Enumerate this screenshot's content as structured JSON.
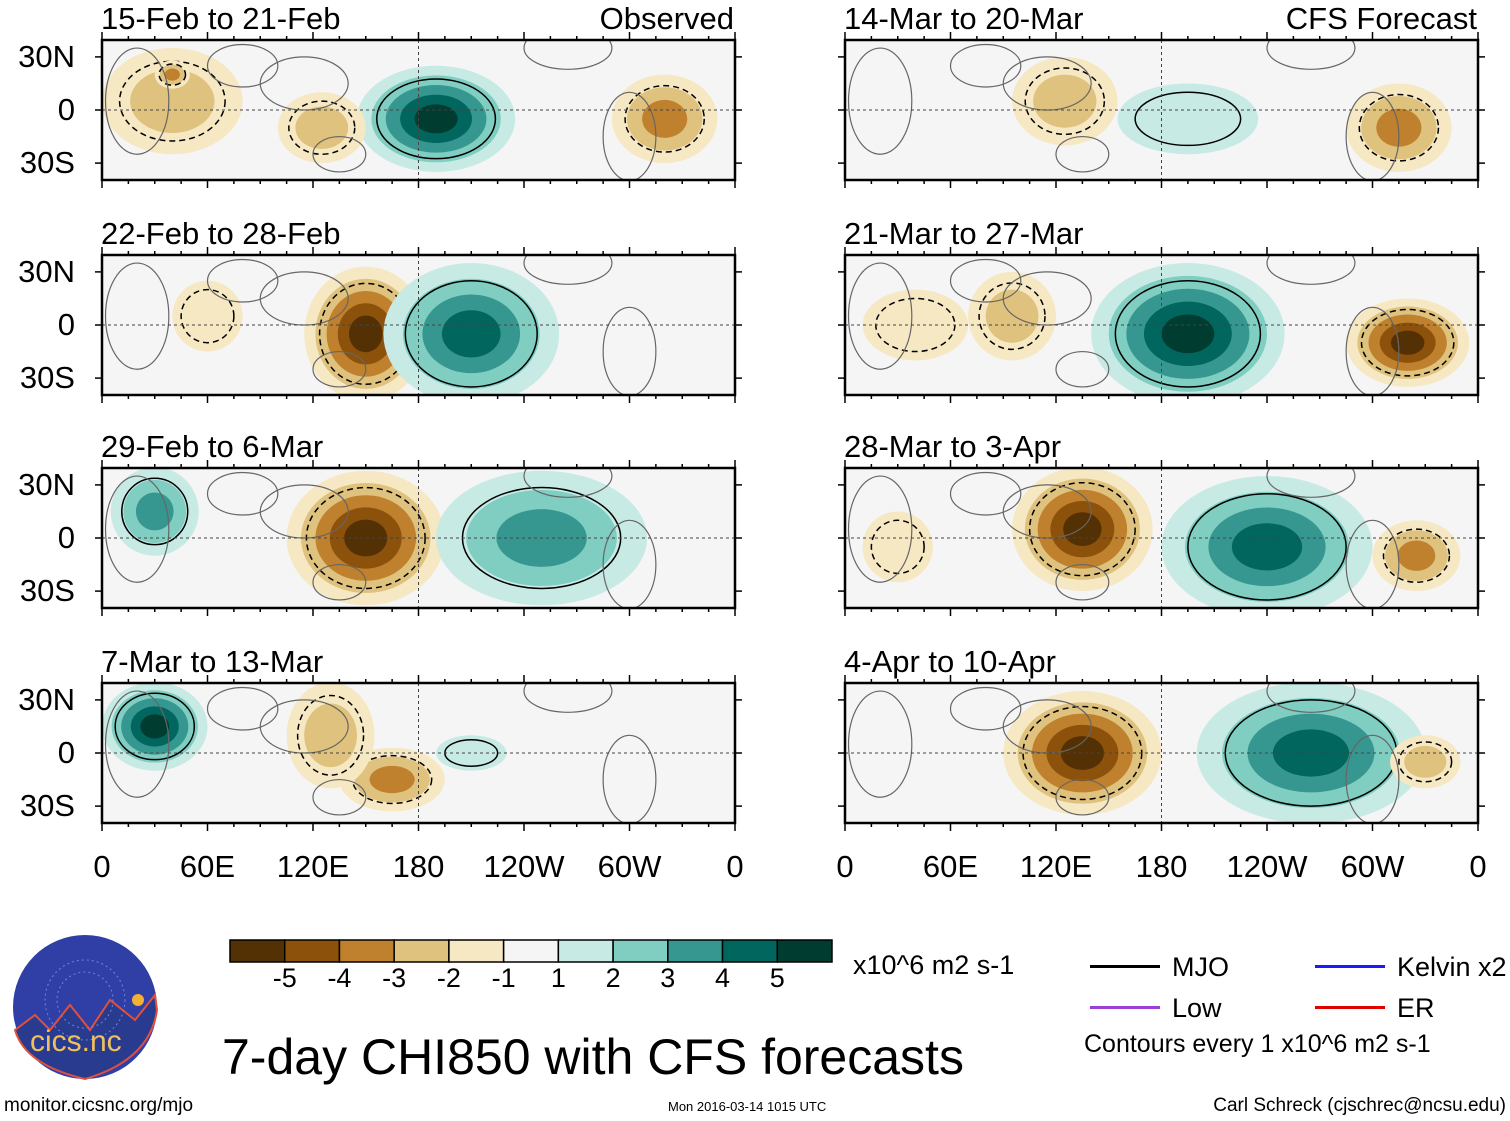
{
  "panels": [
    {
      "title": "15-Feb to 21-Feb",
      "tag": "Observed"
    },
    {
      "title": "22-Feb to 28-Feb"
    },
    {
      "title": "29-Feb to 6-Mar"
    },
    {
      "title": "7-Mar to 13-Mar"
    },
    {
      "title": "14-Mar to 20-Mar",
      "tag": "CFS Forecast"
    },
    {
      "title": "21-Mar to 27-Mar"
    },
    {
      "title": "28-Mar to 3-Apr"
    },
    {
      "title": "4-Apr to 10-Apr"
    }
  ],
  "lat_labels": [
    "30N",
    "0",
    "30S"
  ],
  "lon_labels": [
    "0",
    "60E",
    "120E",
    "180",
    "120W",
    "60W",
    "0"
  ],
  "colorbar": {
    "colors": [
      "#543005",
      "#8c510a",
      "#bf812d",
      "#dfc27d",
      "#f6e8c3",
      "#f5f5f5",
      "#c7eae5",
      "#80cdc1",
      "#35978f",
      "#01665e",
      "#003c30"
    ],
    "labels": [
      "-5",
      "-4",
      "-3",
      "-2",
      "-1",
      "1",
      "2",
      "3",
      "4",
      "5"
    ],
    "units": "x10^6 m2 s-1"
  },
  "legend": {
    "items": [
      {
        "label": "MJO",
        "color": "#000000"
      },
      {
        "label": "Kelvin x2",
        "color": "#1a1aff"
      },
      {
        "label": "Low",
        "color": "#9b3fd9"
      },
      {
        "label": "ER",
        "color": "#e00000"
      }
    ],
    "contours": "Contours every 1 x10^6 m2 s-1"
  },
  "title": "7-day CHI850 with CFS forecasts",
  "logo_text": "cics.nc",
  "logo_ring": "Cooperative Institute for Climate and Satellites",
  "footer": {
    "left": "monitor.cicsnc.org/mjo",
    "center": "Mon 2016-03-14 1015 UTC",
    "right": "Carl Schreck (cjschrec@ncsu.edu)"
  }
}
